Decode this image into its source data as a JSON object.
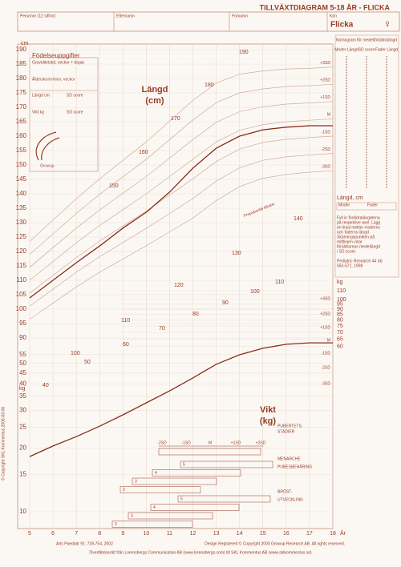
{
  "header": {
    "title": "TILLVÄXTDIAGRAM 5-18 ÅR - FLICKA",
    "fields": [
      "Personnr (12 siffror)",
      "Efternamn",
      "Förnamn",
      "Kön"
    ],
    "sex": "Flicka",
    "sex_symbol": "♀"
  },
  "birth_box": {
    "title": "Födelseuppgifter",
    "lines": [
      "Graviditetstid, veckor + dagar",
      "Ålderskorrektion, veckor"
    ],
    "grid": [
      "Längd cm",
      "SD score",
      "Vikt kg",
      "SD score"
    ],
    "logo": "Growup"
  },
  "nomogram": {
    "title": "Nomogram för medelföräldralängd",
    "columns": [
      "Moder Längd",
      "SD score",
      "Fader Längd"
    ],
    "axis_label": "Längd, cm",
    "fields": [
      "Moder",
      "Fader"
    ],
    "note": [
      "Fyll in föräldralängderna",
      "på respektive axel. Lägg",
      "en linjal mellan moderns",
      "och faderns längd.",
      "Skärningspunkten på",
      "mittlinjen visar",
      "föräldrarnas medellängd",
      "i SD score."
    ],
    "reference": [
      "Pediatric Research 44 (4)",
      "563-571, 1998"
    ]
  },
  "chart_data": {
    "type": "line",
    "x_label": "År",
    "x": [
      5,
      6,
      7,
      8,
      9,
      10,
      11,
      12,
      13,
      14,
      15,
      16,
      17,
      18
    ],
    "xlim": [
      5,
      18
    ],
    "xticks": [
      5,
      6,
      7,
      8,
      9,
      10,
      11,
      12,
      13,
      14,
      15,
      16,
      17,
      18
    ],
    "y_label": "cm",
    "ylim": [
      90,
      190
    ],
    "yticks": [
      90,
      95,
      100,
      105,
      110,
      115,
      120,
      125,
      130,
      135,
      140,
      145,
      150,
      155,
      160,
      165,
      170,
      175,
      180,
      185,
      190
    ],
    "y2_label": "kg",
    "y2lim": [
      10,
      110
    ],
    "y2_scale": "log",
    "y2ticks": [
      10,
      15,
      20,
      25,
      30,
      35,
      40,
      45,
      50,
      55,
      60,
      65,
      70,
      75,
      80,
      85,
      90,
      95,
      100,
      110
    ],
    "grid": true,
    "height_title": [
      "Längd",
      "(cm)"
    ],
    "weight_title": [
      "Vikt",
      "(kg)"
    ],
    "annotation": "Prepubertal tillväxt",
    "height_guide_labels": [
      190,
      180,
      170,
      160,
      150,
      140,
      130,
      120,
      110,
      100
    ],
    "weight_guide_labels": [
      110,
      100,
      90,
      80,
      70,
      60,
      50,
      40
    ],
    "weight_sd_labels": [
      "+3SD",
      "+2SD",
      "+1SD",
      "M",
      "-1SD",
      "-2SD",
      "-3SD"
    ],
    "series": [
      {
        "name": "+3SD",
        "color": "#d2ad98",
        "values": [
          123.5,
          130.9,
          138.3,
          145.2,
          151.6,
          158,
          165.2,
          172.4,
          178.4,
          181.5,
          182.6,
          183.3,
          183.5,
          184
        ]
      },
      {
        "name": "+2SD",
        "color": "#d2ad98",
        "values": [
          119,
          126.1,
          133.2,
          139.8,
          145.9,
          152,
          158.8,
          165.6,
          171.6,
          175,
          176.4,
          177.2,
          177.5,
          178
        ]
      },
      {
        "name": "+1SD",
        "color": "#d2ad98",
        "values": [
          114.5,
          121.3,
          128.1,
          134.4,
          140.2,
          146,
          152.4,
          158.8,
          164.8,
          168.5,
          170.2,
          171.1,
          171.5,
          172
        ]
      },
      {
        "name": "M",
        "color": "#d2ad98",
        "values": [
          110,
          116.5,
          123,
          129,
          134.5,
          140,
          146,
          152,
          158,
          162,
          164,
          165,
          165.5,
          166
        ]
      },
      {
        "name": "-1SD",
        "color": "#d2ad98",
        "values": [
          105.5,
          111.7,
          117.9,
          123.6,
          128.8,
          134,
          139.6,
          145.2,
          151.2,
          155.5,
          157.8,
          158.9,
          159.5,
          160
        ]
      },
      {
        "name": "-2SD",
        "color": "#d2ad98",
        "values": [
          101,
          106.9,
          112.8,
          118.2,
          123.1,
          128,
          133.2,
          138.4,
          144.4,
          149,
          151.6,
          152.8,
          153.5,
          154
        ]
      },
      {
        "name": "-3SD",
        "color": "#d2ad98",
        "values": [
          96.5,
          102.1,
          107.7,
          112.8,
          117.4,
          122,
          126.8,
          131.6,
          137.6,
          142.5,
          145.4,
          146.7,
          147.5,
          148
        ]
      },
      {
        "color": "#8a2b18",
        "values": [
          103.9,
          110,
          116.1,
          121.9,
          128.1,
          133.6,
          140.6,
          148.9,
          155.8,
          160,
          162.2,
          163.1,
          163.6,
          163.6
        ]
      },
      {
        "color": "#8a2b18",
        "axis": "y2",
        "values": [
          18.2,
          20.4,
          22.6,
          25.3,
          28.6,
          32.6,
          37.1,
          42.7,
          49.5,
          54.9,
          58.9,
          61.5,
          62.5,
          62.5
        ]
      }
    ]
  },
  "puberty": {
    "title": [
      "PUBERTETS",
      "STADIER"
    ],
    "scale": [
      "-2SD",
      "-1SD",
      "M",
      "+1SD",
      "+2SD"
    ],
    "rows": [
      "MENARCHE",
      "PUBESBEHÅRING",
      "BRÖST-",
      "UTVECKLING"
    ],
    "stages": [
      "5",
      "4",
      "3",
      "2"
    ]
  },
  "footer": {
    "left": "Arts Paediatr 91: 739-754, 2002",
    "right": "Design Registered © Copyright 2000 Growup Research AB. All rights reserved.",
    "bottom": "Överlåtelserätt från Lorensbergs Communication AB (www.lorensbergs.com) till SKL Kommentus AB (www.sklkommentus.se)",
    "side": "© Copyright SKL Kommentus 2006-03-06"
  }
}
